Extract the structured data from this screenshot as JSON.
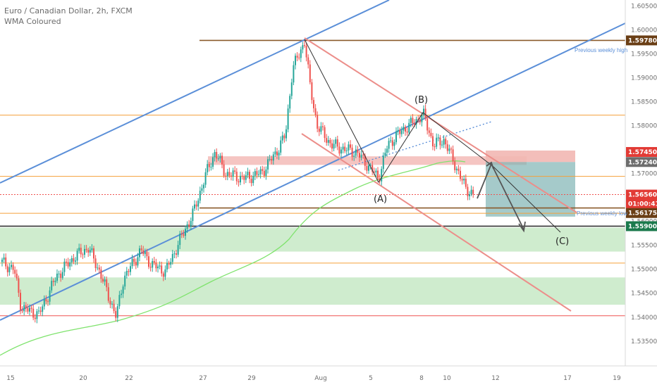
{
  "header": {
    "symbol_line": "Euro / Canadian Dollar, 2h, FXCM",
    "indicator_line": "WMA Coloured"
  },
  "colors": {
    "up": "#26a69a",
    "down": "#ef5350",
    "brown": "#8a5a2b",
    "orange": "#f5a13a",
    "blue": "#5b8fd8",
    "salmon": "#ec8e8a",
    "green_line": "#7fe36d",
    "zone_green": "#bfe6bd",
    "zone_red": "#f2b7b3",
    "target_box": "#7fb4b4",
    "dark": "#333333",
    "tag_green": "#1b7a4d",
    "tag_red": "#e23b35",
    "tag_grey": "#6d6d6d",
    "tag_brown": "#6a3e15"
  },
  "chart_data": {
    "type": "candlestick",
    "title": "Euro / Canadian Dollar, 2h, FXCM",
    "ylim": [
      1.531,
      1.6065
    ],
    "y_ticks": [
      "1.60500",
      "1.60000",
      "1.59500",
      "1.59000",
      "1.58500",
      "1.58000",
      "1.57500",
      "1.57000",
      "1.56500",
      "1.56000",
      "1.55500",
      "1.55000",
      "1.54500",
      "1.54000",
      "1.53500"
    ],
    "x_ticks": [
      "15",
      "20",
      "22",
      "27",
      "29",
      "Aug",
      "5",
      "8",
      "10",
      "12",
      "17",
      "19"
    ],
    "price_tags": [
      {
        "label": "1.59780",
        "value": 1.5978,
        "color": "tag_brown"
      },
      {
        "label": "1.57450",
        "value": 1.5745,
        "color": "tag_red"
      },
      {
        "label": "1.57240",
        "value": 1.5724,
        "color": "tag_grey"
      },
      {
        "label": "1.56560",
        "value": 1.5656,
        "color": "tag_red"
      },
      {
        "label": "01:00:41",
        "value": 1.5637,
        "color": "tag_red"
      },
      {
        "label": "1.56175",
        "value": 1.56175,
        "color": "tag_brown"
      },
      {
        "label": "1.55900",
        "value": 1.559,
        "color": "tag_green"
      }
    ],
    "annotations": [
      {
        "text": "Previous weekly high",
        "value": 1.5958
      },
      {
        "text": "Previous weekly low",
        "value": 1.5617
      },
      {
        "text": "(A)",
        "value": 1.5648
      },
      {
        "text": "(B)",
        "value": 1.5855
      },
      {
        "text": "(C)",
        "value": 1.556
      }
    ],
    "horizontal_levels": [
      {
        "value": 1.5978,
        "color": "brown"
      },
      {
        "value": 1.5822,
        "color": "orange"
      },
      {
        "value": 1.5694,
        "color": "orange"
      },
      {
        "value": 1.5656,
        "color": "down"
      },
      {
        "value": 1.5628,
        "color": "brown"
      },
      {
        "value": 1.5617,
        "color": "orange"
      },
      {
        "value": 1.559,
        "color": "dark"
      },
      {
        "value": 1.5513,
        "color": "orange"
      },
      {
        "value": 1.5403,
        "color": "down"
      }
    ],
    "zones": [
      {
        "from": 1.5587,
        "to": 1.5537,
        "color": "zone_green"
      },
      {
        "from": 1.5483,
        "to": 1.5426,
        "color": "zone_green"
      }
    ]
  }
}
